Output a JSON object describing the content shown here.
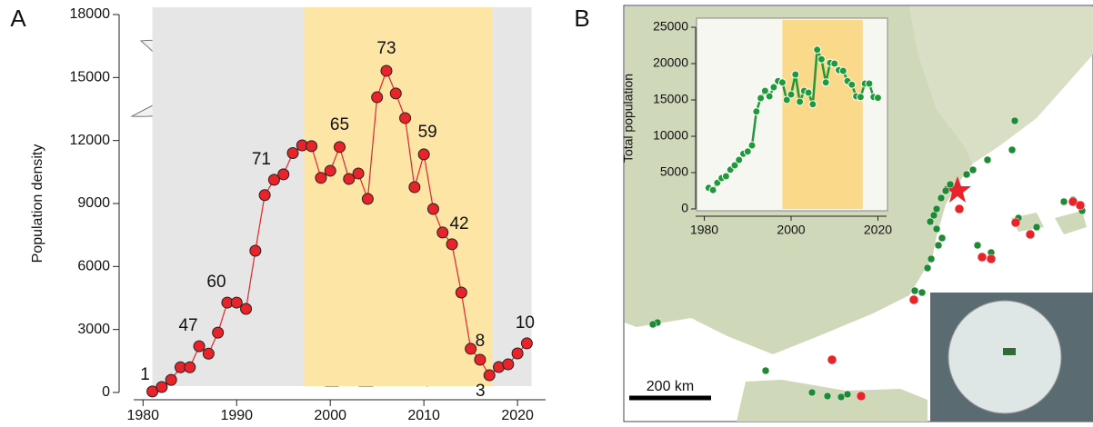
{
  "chart_data": [
    {
      "type": "line",
      "panel": "A",
      "ylabel": "Population density",
      "x": [
        1981,
        1982,
        1983,
        1984,
        1985,
        1986,
        1987,
        1988,
        1989,
        1990,
        1991,
        1992,
        1993,
        1994,
        1995,
        1996,
        1997,
        1998,
        1999,
        2000,
        2001,
        2002,
        2003,
        2004,
        2005,
        2006,
        2007,
        2008,
        2009,
        2010,
        2011,
        2012,
        2013,
        2014,
        2015,
        2016,
        2017,
        2018,
        2019,
        2020,
        2021
      ],
      "values": [
        50,
        260,
        600,
        1200,
        1200,
        2200,
        1850,
        2850,
        4280,
        4280,
        3980,
        6750,
        9400,
        10130,
        10390,
        11400,
        11770,
        11730,
        10220,
        10560,
        11690,
        10170,
        10430,
        9220,
        14060,
        15320,
        14240,
        13070,
        9780,
        11340,
        8740,
        7620,
        7060,
        4760,
        2080,
        1560,
        820,
        1210,
        1340,
        1860,
        2340
      ],
      "color": "#e8232a",
      "marker_color": "#e8232a",
      "xlim": [
        1979,
        2023
      ],
      "xticks": [
        1980,
        1990,
        2000,
        2010,
        2020
      ],
      "ylim": [
        0,
        18000
      ],
      "yticks": [
        0,
        3000,
        6000,
        9000,
        12000,
        15000,
        18000
      ],
      "shaded_spans": [
        {
          "from": 1981,
          "to": 2021.5,
          "color": "#e6e6e6"
        },
        {
          "from": 1997.2,
          "to": 2017.3,
          "color": "#fde5a5"
        }
      ],
      "annotations": [
        {
          "x": 1981,
          "text": "1"
        },
        {
          "x": 1986,
          "text": "47"
        },
        {
          "x": 1989,
          "text": "60"
        },
        {
          "x": 1994,
          "text": "71"
        },
        {
          "x": 2001,
          "text": "65"
        },
        {
          "x": 2006,
          "text": "73"
        },
        {
          "x": 2010,
          "text": "59"
        },
        {
          "x": 2013,
          "text": "42"
        },
        {
          "x": 2016,
          "text": "8"
        },
        {
          "x": 2017,
          "text": "3"
        },
        {
          "x": 2021,
          "text": "10"
        }
      ]
    },
    {
      "type": "line",
      "panel": "B",
      "ylabel": "Total population",
      "scale_bar_label": "200 km",
      "x": [
        1981,
        1982,
        1983,
        1984,
        1985,
        1986,
        1987,
        1988,
        1989,
        1990,
        1991,
        1992,
        1993,
        1994,
        1995,
        1996,
        1997,
        1998,
        1999,
        2000,
        2001,
        2002,
        2003,
        2004,
        2005,
        2006,
        2007,
        2008,
        2009,
        2010,
        2011,
        2012,
        2013,
        2014,
        2015,
        2016,
        2017,
        2018,
        2019,
        2020
      ],
      "values": [
        2900,
        2600,
        3600,
        4250,
        4500,
        5400,
        6000,
        6750,
        7600,
        7900,
        8750,
        13400,
        15250,
        16250,
        15500,
        16750,
        17600,
        17400,
        15000,
        15750,
        18500,
        14750,
        16250,
        16000,
        14400,
        21900,
        20600,
        17400,
        20100,
        20000,
        19100,
        19000,
        17600,
        17100,
        15500,
        15400,
        17250,
        17250,
        15400,
        15300
      ],
      "color": "#1f9a3a",
      "marker_color": "#1f9a3a",
      "xlim": [
        1978,
        2022
      ],
      "xticks": [
        1980,
        2000,
        2020
      ],
      "ylim": [
        0,
        25000
      ],
      "yticks": [
        0,
        5000,
        10000,
        15000,
        20000,
        25000
      ],
      "shaded_spans": [
        {
          "from": 1998,
          "to": 2016.5,
          "color": "#fbd98a"
        }
      ]
    }
  ]
}
